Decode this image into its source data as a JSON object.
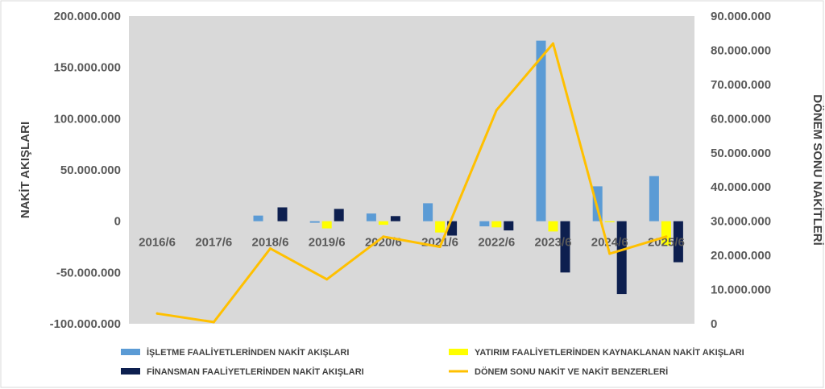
{
  "chart_data": {
    "type": "bar",
    "categories": [
      "2016/6",
      "2017/6",
      "2018/6",
      "2019/6",
      "2020/6",
      "2021/6",
      "2022/6",
      "2023/6",
      "2024/6",
      "2025/6"
    ],
    "y_left": {
      "label": "NAKİT AKIŞLARI",
      "range": [
        -100000000,
        200000000
      ],
      "ticks": [
        200000000,
        150000000,
        100000000,
        50000000,
        0,
        -50000000,
        -100000000
      ],
      "tick_labels": [
        "200.000.000",
        "150.000.000",
        "100.000.000",
        "50.000.000",
        "0",
        "-50.000.000",
        "-100.000.000"
      ]
    },
    "y_right": {
      "label": "DÖNEM SONU NAKİTLERİ",
      "range": [
        0,
        90000000
      ],
      "ticks": [
        90000000,
        80000000,
        70000000,
        60000000,
        50000000,
        40000000,
        30000000,
        20000000,
        10000000,
        0
      ],
      "tick_labels": [
        "90.000.000",
        "80.000.000",
        "70.000.000",
        "60.000.000",
        "50.000.000",
        "40.000.000",
        "30.000.000",
        "20.000.000",
        "10.000.000",
        "0"
      ]
    },
    "series": [
      {
        "name": "İŞLETME FAALİYETLERİNDEN NAKİT AKIŞLARI",
        "type": "bar",
        "axis": "left",
        "color": "#5B9BD5",
        "values": [
          0,
          0,
          5500000,
          -1500000,
          7500000,
          17500000,
          -5000000,
          176000000,
          34000000,
          44000000
        ]
      },
      {
        "name": "YATIRIM FAALİYETLERİNDEN KAYNAKLANAN NAKİT AKIŞLARI",
        "type": "bar",
        "axis": "left",
        "color": "#FFFF00",
        "values": [
          0,
          0,
          0,
          -7000000,
          -3500000,
          -11000000,
          -6000000,
          -10000000,
          -1000000,
          -24000000
        ]
      },
      {
        "name": "FİNANSMAN FAALİYETLERİNDEN NAKİT AKIŞLARI",
        "type": "bar",
        "axis": "left",
        "color": "#0D1F4F",
        "values": [
          0,
          0,
          13500000,
          12000000,
          5000000,
          -14000000,
          -9000000,
          -50000000,
          -71000000,
          -40000000
        ]
      },
      {
        "name": "DÖNEM SONU NAKİT VE NAKİT BENZERLERİ",
        "type": "line",
        "axis": "right",
        "color": "#FFC000",
        "values": [
          3000000,
          500000,
          22000000,
          13000000,
          25500000,
          22500000,
          62500000,
          82000000,
          20500000,
          25500000
        ]
      }
    ],
    "grid": false,
    "legend": "bottom"
  },
  "colors": {
    "plot_background": "#D9D9D9",
    "tick_text": "#595959"
  }
}
